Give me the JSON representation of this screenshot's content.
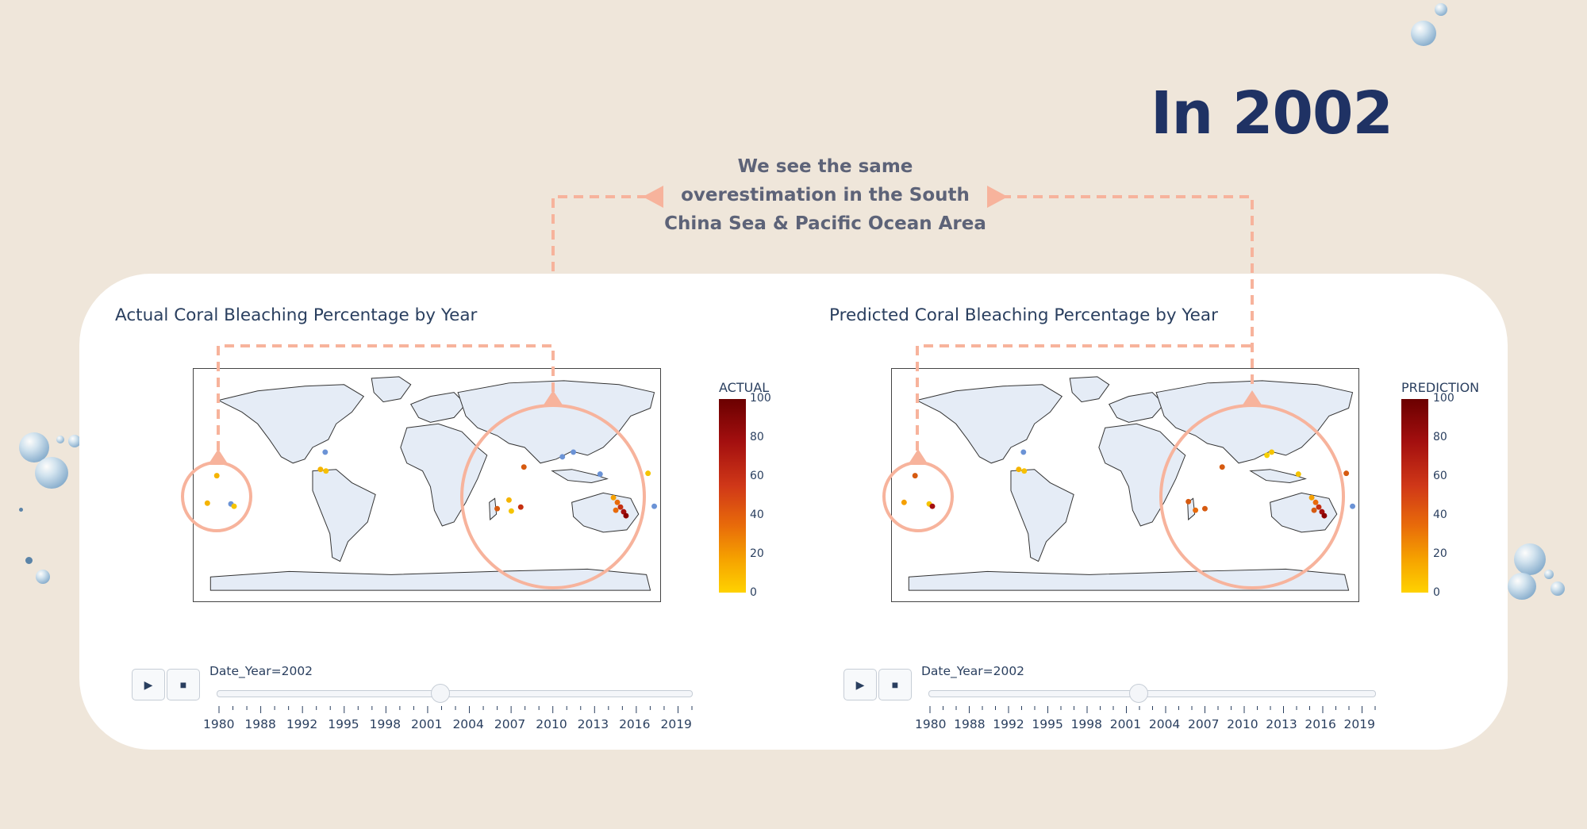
{
  "headline": "In 2002",
  "callout": {
    "lines": [
      "We see the same",
      "overestimation in the South",
      "China Sea & Pacific Ocean Area"
    ]
  },
  "colors": {
    "background": "#efe6da",
    "headline": "#1f3264",
    "accent": "#f7b39c",
    "land": "#e5ecf6"
  },
  "panels": [
    {
      "title": "Actual Coral Bleaching Percentage by Year",
      "colorbar_title": "ACTUAL",
      "colorbar_ticks": [
        "100",
        "80",
        "60",
        "40",
        "20",
        "0"
      ],
      "slider_label": "Date_Year=2002",
      "slider_ticks": [
        "1980",
        "1988",
        "1992",
        "1995",
        "1998",
        "2001",
        "2004",
        "2007",
        "2010",
        "2013",
        "2016",
        "2019"
      ],
      "slider_value": 2002,
      "play_icon": "play-icon",
      "stop_icon": "stop-icon"
    },
    {
      "title": "Predicted Coral Bleaching Percentage by Year",
      "colorbar_title": "PREDICTION",
      "colorbar_ticks": [
        "100",
        "80",
        "60",
        "40",
        "20",
        "0"
      ],
      "slider_label": "Date_Year=2002",
      "slider_ticks": [
        "1980",
        "1988",
        "1992",
        "1995",
        "1998",
        "2001",
        "2004",
        "2007",
        "2010",
        "2013",
        "2016",
        "2019"
      ],
      "slider_value": 2002,
      "play_icon": "play-icon",
      "stop_icon": "stop-icon"
    }
  ]
}
